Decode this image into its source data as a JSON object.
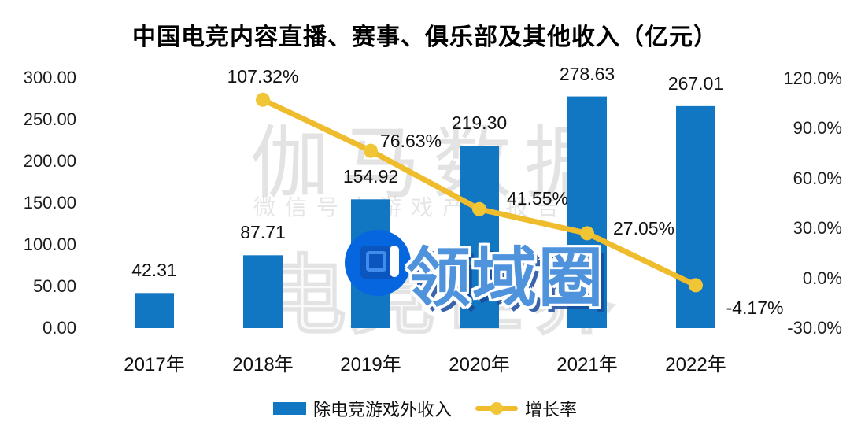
{
  "title": "中国电竞内容直播、赛事、俱乐部及其他收入（亿元）",
  "watermarks": {
    "brand_large": "伽马数据",
    "brand_sub": "微信号丨游戏产业报告",
    "brand_outline": "电竞世界",
    "logo_text": "领域圈"
  },
  "colors": {
    "bar": "#1277c2",
    "line": "#eebc2d",
    "marker": "#f1c636",
    "logo_blue": "#0666e0",
    "logo_text_blue": "#4f93dc"
  },
  "legend": {
    "items": [
      {
        "label": "除电竞游戏外收入",
        "swatch": "bar-swatch"
      },
      {
        "label": "增长率",
        "swatch": "line-swatch"
      }
    ]
  },
  "chart_data": {
    "type": "bar+line",
    "title": "中国电竞内容直播、赛事、俱乐部及其他收入（亿元）",
    "categories": [
      "2017年",
      "2018年",
      "2019年",
      "2020年",
      "2021年",
      "2022年"
    ],
    "series": [
      {
        "name": "除电竞游戏外收入",
        "type": "bar",
        "axis": "left",
        "color": "#1277c2",
        "values": [
          42.31,
          87.71,
          154.92,
          219.3,
          278.63,
          267.01
        ],
        "labels": [
          "42.31",
          "87.71",
          "154.92",
          "219.30",
          "278.63",
          "267.01"
        ]
      },
      {
        "name": "增长率",
        "type": "line",
        "axis": "right",
        "color": "#eebc2d",
        "values": [
          null,
          107.32,
          76.63,
          41.55,
          27.05,
          -4.17
        ],
        "labels": [
          "",
          "107.32%",
          "76.63%",
          "41.55%",
          "27.05%",
          "-4.17%"
        ]
      }
    ],
    "left_axis": {
      "min": 0,
      "max": 300,
      "ticks": [
        "300.00",
        "250.00",
        "200.00",
        "150.00",
        "100.00",
        "50.00",
        "0.00"
      ]
    },
    "right_axis": {
      "min": -30,
      "max": 120,
      "ticks": [
        "120.0%",
        "90.0%",
        "60.0%",
        "30.0%",
        "0.0%",
        "-30.0%"
      ]
    },
    "grid": false,
    "legend_position": "bottom"
  }
}
